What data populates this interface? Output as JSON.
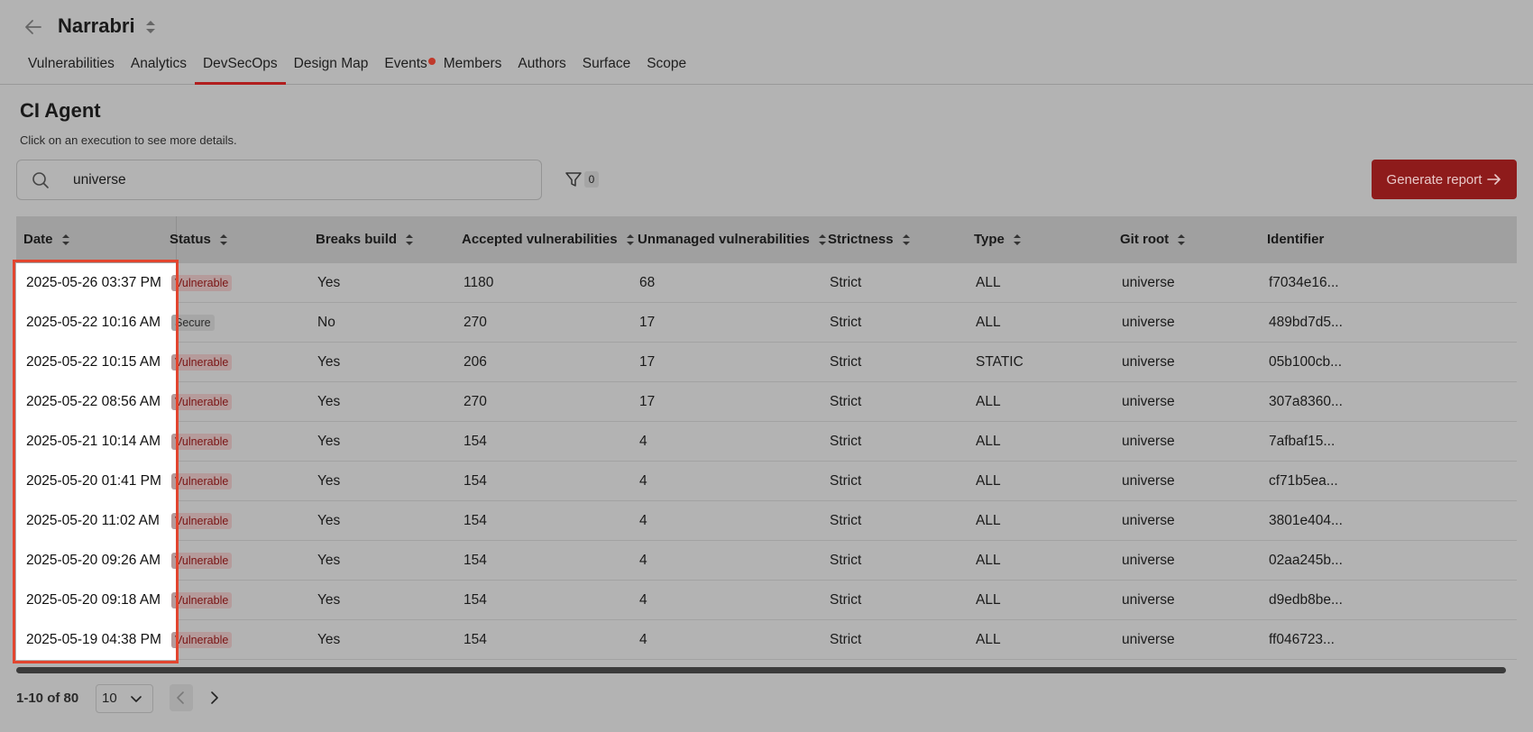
{
  "header": {
    "title": "Narrabri",
    "tabs": [
      {
        "label": "Vulnerabilities"
      },
      {
        "label": "Analytics"
      },
      {
        "label": "DevSecOps"
      },
      {
        "label": "Design Map"
      },
      {
        "label": "Events"
      },
      {
        "label": "Members"
      },
      {
        "label": "Authors"
      },
      {
        "label": "Surface"
      },
      {
        "label": "Scope"
      }
    ],
    "active_tab": "DevSecOps"
  },
  "section": {
    "title": "CI Agent",
    "subtitle": "Click on an execution to see more details."
  },
  "search": {
    "value": "universe"
  },
  "filter": {
    "count": "0"
  },
  "generate_button": {
    "label": "Generate report"
  },
  "table": {
    "headers": [
      "Date",
      "Status",
      "Breaks build",
      "Accepted vulnerabilities",
      "Unmanaged vulnerabilities",
      "Strictness",
      "Type",
      "Git root",
      "Identifier"
    ],
    "rows": [
      {
        "date": "2025-05-26 03:37 PM",
        "status": "Vulnerable",
        "breaks": "Yes",
        "accepted": "1180",
        "unmanaged": "68",
        "strictness": "Strict",
        "type": "ALL",
        "root": "universe",
        "id": "f7034e16..."
      },
      {
        "date": "2025-05-22 10:16 AM",
        "status": "Secure",
        "breaks": "No",
        "accepted": "270",
        "unmanaged": "17",
        "strictness": "Strict",
        "type": "ALL",
        "root": "universe",
        "id": "489bd7d5..."
      },
      {
        "date": "2025-05-22 10:15 AM",
        "status": "Vulnerable",
        "breaks": "Yes",
        "accepted": "206",
        "unmanaged": "17",
        "strictness": "Strict",
        "type": "STATIC",
        "root": "universe",
        "id": "05b100cb..."
      },
      {
        "date": "2025-05-22 08:56 AM",
        "status": "Vulnerable",
        "breaks": "Yes",
        "accepted": "270",
        "unmanaged": "17",
        "strictness": "Strict",
        "type": "ALL",
        "root": "universe",
        "id": "307a8360..."
      },
      {
        "date": "2025-05-21 10:14 AM",
        "status": "Vulnerable",
        "breaks": "Yes",
        "accepted": "154",
        "unmanaged": "4",
        "strictness": "Strict",
        "type": "ALL",
        "root": "universe",
        "id": "7afbaf15..."
      },
      {
        "date": "2025-05-20 01:41 PM",
        "status": "Vulnerable",
        "breaks": "Yes",
        "accepted": "154",
        "unmanaged": "4",
        "strictness": "Strict",
        "type": "ALL",
        "root": "universe",
        "id": "cf71b5ea..."
      },
      {
        "date": "2025-05-20 11:02 AM",
        "status": "Vulnerable",
        "breaks": "Yes",
        "accepted": "154",
        "unmanaged": "4",
        "strictness": "Strict",
        "type": "ALL",
        "root": "universe",
        "id": "3801e404..."
      },
      {
        "date": "2025-05-20 09:26 AM",
        "status": "Vulnerable",
        "breaks": "Yes",
        "accepted": "154",
        "unmanaged": "4",
        "strictness": "Strict",
        "type": "ALL",
        "root": "universe",
        "id": "02aa245b..."
      },
      {
        "date": "2025-05-20 09:18 AM",
        "status": "Vulnerable",
        "breaks": "Yes",
        "accepted": "154",
        "unmanaged": "4",
        "strictness": "Strict",
        "type": "ALL",
        "root": "universe",
        "id": "d9edb8be..."
      },
      {
        "date": "2025-05-19 04:38 PM",
        "status": "Vulnerable",
        "breaks": "Yes",
        "accepted": "154",
        "unmanaged": "4",
        "strictness": "Strict",
        "type": "ALL",
        "root": "universe",
        "id": "ff046723..."
      }
    ]
  },
  "pagination": {
    "range": "1-10 of 80",
    "page_size": "10"
  },
  "colors": {
    "accent": "#8e1b1b",
    "highlight": "#e2452f",
    "tab_underline": "#b11e1e"
  }
}
